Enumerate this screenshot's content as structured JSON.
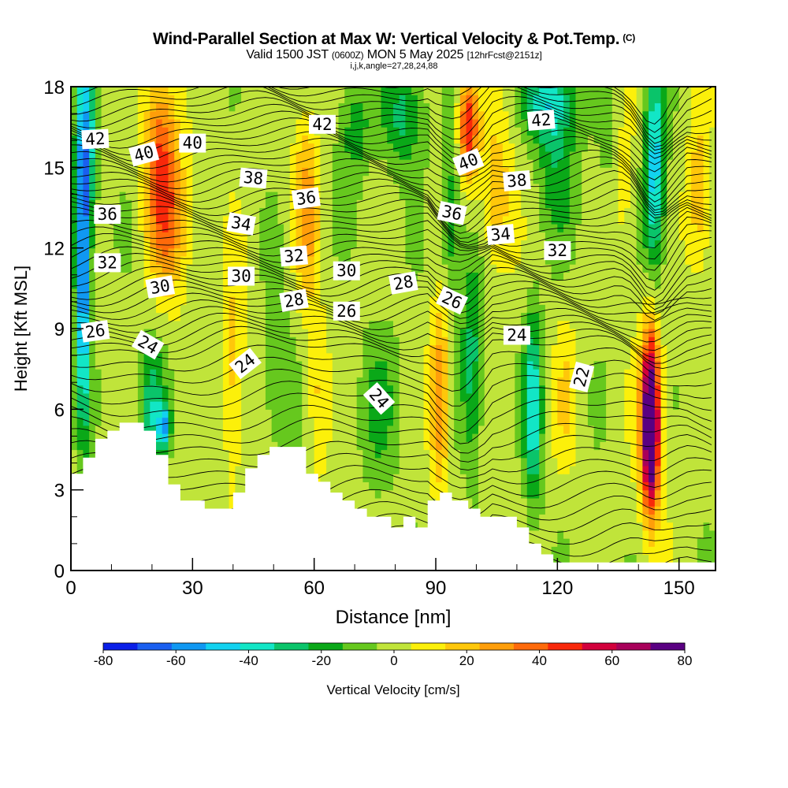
{
  "header": {
    "title": "Wind-Parallel Section at Max W: Vertical Velocity & Pot.Temp.",
    "copyright": "(C)",
    "valid_prefix": "Valid 1500 JST",
    "valid_utc": "(0600Z)",
    "valid_date": "MON 5 May 2025",
    "forecast_info": "[12hrFcst@2151z]",
    "grid_info": "i,j,k,angle=27,28,24,88"
  },
  "chart_data": {
    "type": "heatmap",
    "xlabel": "Distance [nm]",
    "ylabel": "Height [Kft MSL]",
    "xlim": [
      0,
      159
    ],
    "ylim": [
      0,
      18
    ],
    "x_ticks": [
      0,
      30,
      60,
      90,
      120,
      150
    ],
    "y_ticks": [
      0,
      3,
      6,
      9,
      12,
      15,
      18
    ],
    "colorbar": {
      "label": "Vertical Velocity [cm/s]",
      "tick_labels": [
        -80,
        -60,
        -40,
        -20,
        0,
        20,
        40,
        60,
        80
      ],
      "levels": [
        -80,
        -70,
        -60,
        -50,
        -40,
        -30,
        -20,
        -10,
        0,
        10,
        20,
        30,
        40,
        50,
        60,
        70,
        80
      ],
      "colors": [
        "#0a1fe8",
        "#1a5ff0",
        "#1098f2",
        "#12d2f0",
        "#12e6c6",
        "#0ac46a",
        "#0aa818",
        "#66c81e",
        "#c0e43a",
        "#fcf00a",
        "#ffc70a",
        "#ff9e0a",
        "#ff6a0a",
        "#f8280a",
        "#d2003c",
        "#a8005a",
        "#5a0082"
      ]
    },
    "terrain": [
      [
        0,
        3.6
      ],
      [
        3,
        3.6
      ],
      [
        3,
        4.2
      ],
      [
        6,
        4.2
      ],
      [
        6,
        4.9
      ],
      [
        9,
        4.9
      ],
      [
        9,
        5.2
      ],
      [
        12,
        5.2
      ],
      [
        12,
        5.5
      ],
      [
        18,
        5.5
      ],
      [
        18,
        5.2
      ],
      [
        21,
        5.2
      ],
      [
        21,
        4.3
      ],
      [
        24,
        4.3
      ],
      [
        24,
        3.2
      ],
      [
        27,
        3.2
      ],
      [
        27,
        2.6
      ],
      [
        33,
        2.6
      ],
      [
        33,
        2.3
      ],
      [
        40,
        2.3
      ],
      [
        40,
        2.9
      ],
      [
        43,
        2.9
      ],
      [
        43,
        3.8
      ],
      [
        46,
        3.8
      ],
      [
        46,
        4.3
      ],
      [
        49,
        4.3
      ],
      [
        49,
        4.6
      ],
      [
        58,
        4.6
      ],
      [
        58,
        3.6
      ],
      [
        61,
        3.6
      ],
      [
        61,
        3.3
      ],
      [
        64,
        3.3
      ],
      [
        64,
        2.9
      ],
      [
        67,
        2.9
      ],
      [
        67,
        2.6
      ],
      [
        70,
        2.6
      ],
      [
        70,
        2.3
      ],
      [
        73,
        2.3
      ],
      [
        73,
        2.0
      ],
      [
        79,
        2.0
      ],
      [
        79,
        1.6
      ],
      [
        82,
        1.6
      ],
      [
        82,
        2.0
      ],
      [
        85,
        2.0
      ],
      [
        85,
        1.6
      ],
      [
        88,
        1.6
      ],
      [
        88,
        2.6
      ],
      [
        91,
        2.6
      ],
      [
        91,
        2.9
      ],
      [
        94,
        2.9
      ],
      [
        94,
        2.6
      ],
      [
        98,
        2.6
      ],
      [
        98,
        2.3
      ],
      [
        101,
        2.3
      ],
      [
        101,
        2.0
      ],
      [
        110,
        2.0
      ],
      [
        110,
        1.6
      ],
      [
        113,
        1.6
      ],
      [
        113,
        1.0
      ],
      [
        116,
        1.0
      ],
      [
        116,
        0.6
      ],
      [
        119,
        0.6
      ],
      [
        119,
        0.3
      ],
      [
        159,
        0.3
      ]
    ],
    "features": [
      {
        "x": 3,
        "z": 11.5,
        "w": -72,
        "sx": 1.8,
        "sz": 5.5
      },
      {
        "x": 4,
        "z": 16,
        "w": -35,
        "sx": 2.5,
        "sz": 3
      },
      {
        "x": 22,
        "z": 15.5,
        "w": 40,
        "sx": 4,
        "sz": 3.5
      },
      {
        "x": 25,
        "z": 13,
        "w": 25,
        "sx": 5,
        "sz": 3
      },
      {
        "x": 20,
        "z": 6,
        "w": -30,
        "sx": 3,
        "sz": 2.5
      },
      {
        "x": 23,
        "z": 5.4,
        "w": -45,
        "sx": 1.5,
        "sz": 0.8
      },
      {
        "x": 40,
        "z": 7.5,
        "w": 22,
        "sx": 3,
        "sz": 4
      },
      {
        "x": 51,
        "z": 7,
        "w": -15,
        "sx": 4,
        "sz": 3
      },
      {
        "x": 58,
        "z": 13.5,
        "w": 30,
        "sx": 3,
        "sz": 3.5
      },
      {
        "x": 61,
        "z": 6.5,
        "w": 20,
        "sx": 2.5,
        "sz": 3
      },
      {
        "x": 70,
        "z": 16.5,
        "w": -20,
        "sx": 4,
        "sz": 2
      },
      {
        "x": 76,
        "z": 6,
        "w": -15,
        "sx": 5,
        "sz": 3
      },
      {
        "x": 82,
        "z": 17,
        "w": -28,
        "sx": 5,
        "sz": 2
      },
      {
        "x": 91,
        "z": 6.5,
        "w": 38,
        "sx": 2.3,
        "sz": 3.5
      },
      {
        "x": 98,
        "z": 16.5,
        "w": 55,
        "sx": 2.5,
        "sz": 2
      },
      {
        "x": 94,
        "z": 13,
        "w": -25,
        "sx": 2.5,
        "sz": 3
      },
      {
        "x": 99,
        "z": 8,
        "w": -28,
        "sx": 2.5,
        "sz": 4
      },
      {
        "x": 105,
        "z": 14,
        "w": 25,
        "sx": 4,
        "sz": 3
      },
      {
        "x": 114,
        "z": 6,
        "w": -42,
        "sx": 2.2,
        "sz": 3.5
      },
      {
        "x": 118,
        "z": 17.5,
        "w": -40,
        "sx": 6,
        "sz": 1.5
      },
      {
        "x": 120,
        "z": 15,
        "w": -20,
        "sx": 5,
        "sz": 2.5
      },
      {
        "x": 122,
        "z": 6.5,
        "w": 14,
        "sx": 3,
        "sz": 3
      },
      {
        "x": 135,
        "z": 14.5,
        "w": 18,
        "sx": 4,
        "sz": 3
      },
      {
        "x": 143,
        "z": 5.5,
        "w": 85,
        "sx": 1.8,
        "sz": 3
      },
      {
        "x": 143,
        "z": 5.5,
        "w": 35,
        "sx": 3.5,
        "sz": 4
      },
      {
        "x": 144,
        "z": 15,
        "w": -50,
        "sx": 2.5,
        "sz": 4
      },
      {
        "x": 133,
        "z": 15,
        "w": -18,
        "sx": 3,
        "sz": 3
      },
      {
        "x": 155,
        "z": 14,
        "w": 25,
        "sx": 3,
        "sz": 3
      }
    ],
    "theta_labels": [
      {
        "text": "42",
        "x": 6,
        "z": 16.05,
        "angle": -3
      },
      {
        "text": "40",
        "x": 18,
        "z": 15.5,
        "angle": -15
      },
      {
        "text": "40",
        "x": 30,
        "z": 15.9,
        "angle": 0
      },
      {
        "text": "42",
        "x": 62,
        "z": 16.6,
        "angle": 0
      },
      {
        "text": "42",
        "x": 116,
        "z": 16.75,
        "angle": -5
      },
      {
        "text": "38",
        "x": 45,
        "z": 14.6,
        "angle": 5
      },
      {
        "text": "40",
        "x": 98,
        "z": 15.2,
        "angle": -22
      },
      {
        "text": "38",
        "x": 110,
        "z": 14.5,
        "angle": -5
      },
      {
        "text": "36",
        "x": 9,
        "z": 13.25,
        "angle": 0
      },
      {
        "text": "36",
        "x": 58,
        "z": 13.85,
        "angle": -8
      },
      {
        "text": "36",
        "x": 94,
        "z": 13.3,
        "angle": 12
      },
      {
        "text": "34",
        "x": 42,
        "z": 12.9,
        "angle": 10
      },
      {
        "text": "34",
        "x": 106,
        "z": 12.5,
        "angle": -5
      },
      {
        "text": "32",
        "x": 9,
        "z": 11.45,
        "angle": 0
      },
      {
        "text": "32",
        "x": 55,
        "z": 11.7,
        "angle": -5
      },
      {
        "text": "32",
        "x": 120,
        "z": 11.9,
        "angle": 0
      },
      {
        "text": "30",
        "x": 22,
        "z": 10.55,
        "angle": -10
      },
      {
        "text": "30",
        "x": 42,
        "z": 10.95,
        "angle": 0
      },
      {
        "text": "30",
        "x": 68,
        "z": 11.15,
        "angle": 0
      },
      {
        "text": "28",
        "x": 55,
        "z": 10.05,
        "angle": -10
      },
      {
        "text": "28",
        "x": 82,
        "z": 10.7,
        "angle": -10
      },
      {
        "text": "26",
        "x": 6,
        "z": 8.9,
        "angle": -8
      },
      {
        "text": "26",
        "x": 68,
        "z": 9.65,
        "angle": 0
      },
      {
        "text": "26",
        "x": 94,
        "z": 10.05,
        "angle": 25
      },
      {
        "text": "24",
        "x": 19,
        "z": 8.4,
        "angle": 30
      },
      {
        "text": "24",
        "x": 43,
        "z": 7.7,
        "angle": -38
      },
      {
        "text": "24",
        "x": 76,
        "z": 6.4,
        "angle": 48
      },
      {
        "text": "24",
        "x": 110,
        "z": 8.75,
        "angle": 0
      },
      {
        "text": "22",
        "x": 126,
        "z": 7.2,
        "angle": -75
      }
    ]
  }
}
